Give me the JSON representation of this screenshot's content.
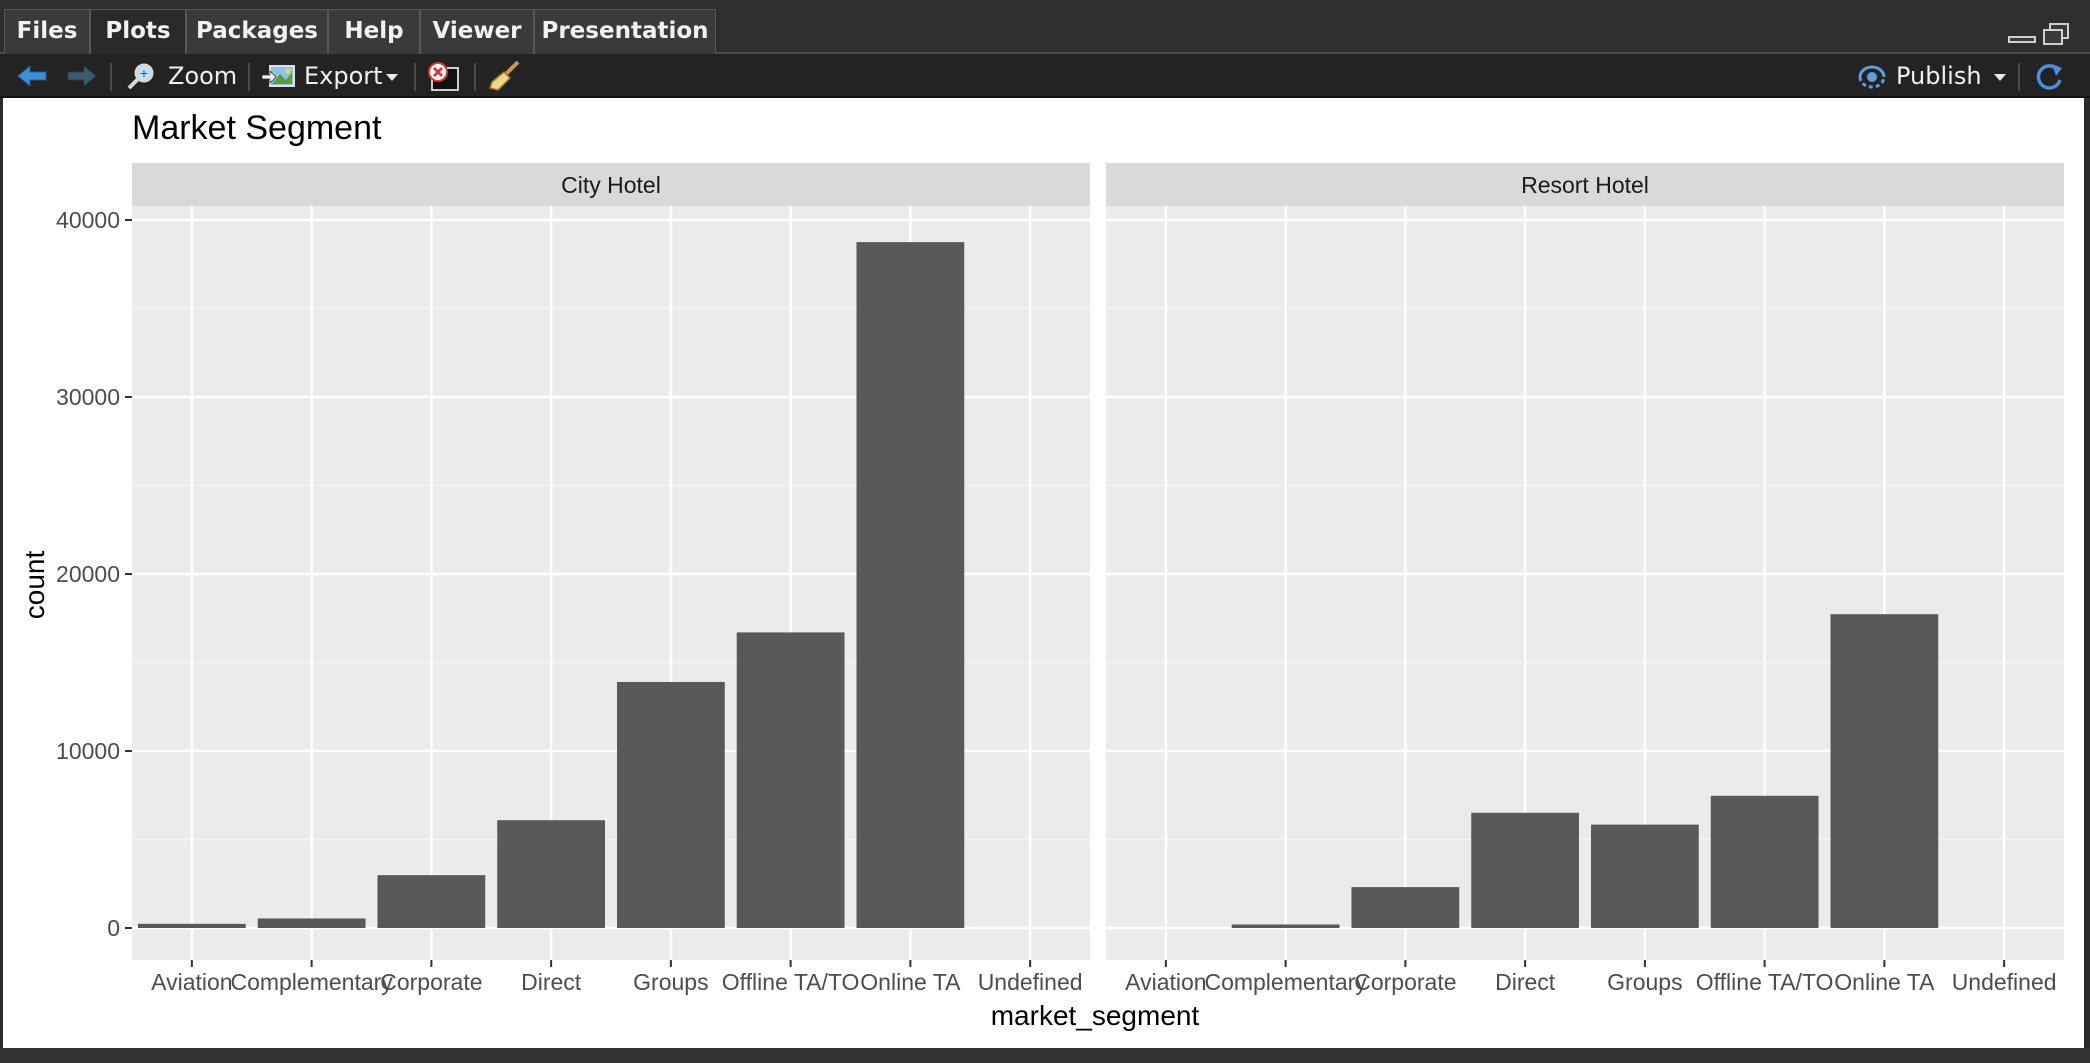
{
  "tabs": [
    {
      "label": "Files"
    },
    {
      "label": "Plots"
    },
    {
      "label": "Packages"
    },
    {
      "label": "Help"
    },
    {
      "label": "Viewer"
    },
    {
      "label": "Presentation"
    }
  ],
  "active_tab": "Plots",
  "toolbar": {
    "zoom_label": "Zoom",
    "export_label": "Export",
    "publish_label": "Publish"
  },
  "icons": {
    "back": "arrow-left-icon",
    "forward": "arrow-right-icon",
    "zoom": "magnifier-icon",
    "export": "image-export-icon",
    "remove": "remove-plot-icon",
    "clear": "broom-icon",
    "publish": "publish-icon",
    "refresh": "refresh-icon"
  },
  "colors": {
    "bar": "#595959",
    "panel_bg": "#ebebeb",
    "strip_bg": "#d9d9d9",
    "accent_icon": "#4a90d9"
  },
  "chart_data": {
    "type": "bar",
    "title": "Market Segment",
    "xlabel": "market_segment",
    "ylabel": "count",
    "ylim": [
      0,
      41000
    ],
    "yticks": [
      0,
      10000,
      20000,
      30000,
      40000
    ],
    "categories": [
      "Aviation",
      "Complementary",
      "Corporate",
      "Direct",
      "Groups",
      "Offline TA/TO",
      "Online TA",
      "Undefined"
    ],
    "facets": [
      {
        "name": "City Hotel",
        "values": [
          235,
          540,
          2985,
          6090,
          13900,
          16700,
          38750,
          2
        ]
      },
      {
        "name": "Resort Hotel",
        "values": [
          0,
          200,
          2310,
          6510,
          5840,
          7470,
          17730,
          0
        ]
      }
    ],
    "grid": true,
    "legend": "none"
  }
}
